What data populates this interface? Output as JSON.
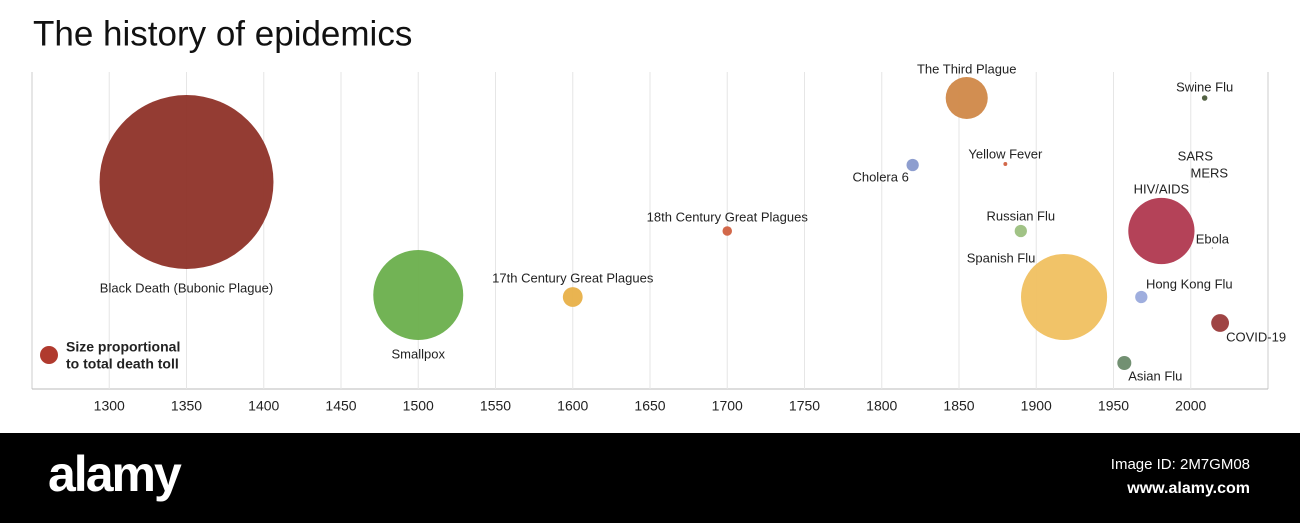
{
  "chart_data": {
    "type": "bubble",
    "title": "The history of epidemics",
    "categories": [
      "Black Death (Bubonic Plague)",
      "Smallpox",
      "17th Century Great Plagues",
      "18th Century Great Plagues",
      "Cholera 6",
      "The Third Plague",
      "Yellow Fever",
      "Russian Flu",
      "Spanish Flu",
      "Asian Flu",
      "Hong Kong Flu",
      "HIV/AIDS",
      "Swine Flu",
      "COVID-19",
      "SARS",
      "MERS",
      "Ebola"
    ],
    "x": [
      1350,
      1500,
      1600,
      1700,
      1820,
      1855,
      1880,
      1890,
      1918,
      1957,
      1968,
      1981,
      2009,
      2019,
      2003,
      2012,
      2014
    ],
    "sizes": [
      200,
      53.5,
      2.6,
      0.6,
      1,
      11.7,
      0.1,
      1,
      49,
      1.3,
      1,
      29,
      0.2,
      2.1,
      0.0008,
      0.00085,
      0.011
    ],
    "colors": [
      "#8e3128",
      "#6aaf4c",
      "#e8b048",
      "#d06040",
      "#8899cc",
      "#d08848",
      "#d06040",
      "#9cc080",
      "#f0c060",
      "#6a8a6a",
      "#9aaadc",
      "#b0384f",
      "#4a5a3a",
      "#9a3a3a",
      "#888888",
      "#888888",
      "#888888"
    ],
    "xlim": [
      1250,
      2050
    ],
    "xticks": [
      1300,
      1350,
      1400,
      1450,
      1500,
      1550,
      1600,
      1650,
      1700,
      1750,
      1800,
      1850,
      1900,
      1950,
      2000
    ],
    "grid": true,
    "legend_text": [
      "Size proportional",
      "to total death toll"
    ],
    "legend_color": "#b03a2e"
  },
  "watermark": {
    "brand": "alamy",
    "image_id": "Image ID: 2M7GM08",
    "url": "www.alamy.com"
  }
}
